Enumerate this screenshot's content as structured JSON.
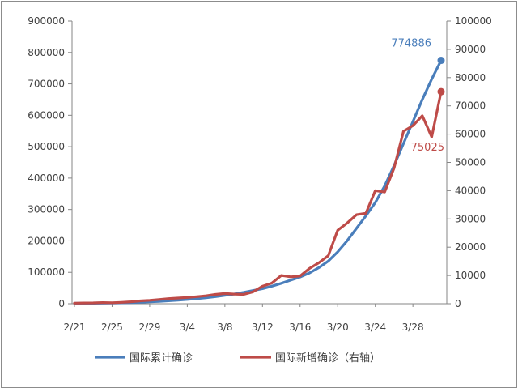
{
  "chart_data": {
    "type": "line",
    "title": "",
    "x_tick_labels": [
      "2/21",
      "2/25",
      "2/29",
      "3/4",
      "3/8",
      "3/12",
      "3/16",
      "3/20",
      "3/24",
      "3/28"
    ],
    "x_range": [
      "2/21",
      "4/1"
    ],
    "left_axis": {
      "ylim": [
        0,
        900000
      ],
      "ticks": [
        "0",
        "100000",
        "200000",
        "300000",
        "400000",
        "500000",
        "600000",
        "700000",
        "800000",
        "900000"
      ]
    },
    "right_axis": {
      "ylim": [
        0,
        100000
      ],
      "ticks": [
        "0",
        "10000",
        "20000",
        "30000",
        "40000",
        "50000",
        "60000",
        "70000",
        "80000",
        "90000",
        "100000"
      ]
    },
    "legend_position": "bottom",
    "grid": false,
    "series": [
      {
        "name": "国际累计确诊",
        "axis": "left",
        "color": "#4a7ebb",
        "values": [
          1200,
          1300,
          1500,
          1800,
          2200,
          2800,
          3600,
          4700,
          6000,
          7500,
          9300,
          11300,
          13500,
          16000,
          19000,
          22500,
          26500,
          31000,
          36000,
          42000,
          48000,
          56000,
          65000,
          75000,
          85000,
          98000,
          115000,
          136000,
          165000,
          200000,
          240000,
          280000,
          322000,
          375000,
          440000,
          510000,
          580000,
          650000,
          715000,
          774886
        ],
        "end_label": "774886"
      },
      {
        "name": "国际新增确诊（右轴）",
        "axis": "right",
        "color": "#be4b48",
        "values": [
          200,
          250,
          300,
          400,
          350,
          500,
          700,
          1000,
          1200,
          1500,
          1800,
          2000,
          2200,
          2500,
          2800,
          3300,
          3600,
          3400,
          3300,
          4200,
          6200,
          7300,
          10000,
          9500,
          9800,
          12500,
          14500,
          17000,
          26000,
          28500,
          31500,
          32000,
          40000,
          39500,
          48000,
          61000,
          63000,
          66500,
          59000,
          75025
        ],
        "end_label": "75025"
      }
    ]
  }
}
